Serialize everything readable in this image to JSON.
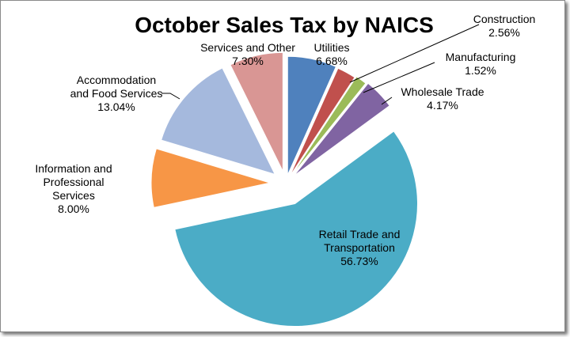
{
  "chart_data": {
    "type": "pie",
    "title": "October Sales Tax by NAICS",
    "slices": [
      {
        "name": "Utilities",
        "value": 6.68,
        "label": "6.68%",
        "color": "#4f81bd"
      },
      {
        "name": "Construction",
        "value": 2.56,
        "label": "2.56%",
        "color": "#c0504d"
      },
      {
        "name": "Manufacturing",
        "value": 1.52,
        "label": "1.52%",
        "color": "#9bbb59"
      },
      {
        "name": "Wholesale Trade",
        "value": 4.17,
        "label": "4.17%",
        "color": "#8064a2"
      },
      {
        "name": "Retail Trade and Transportation",
        "value": 56.73,
        "label": "56.73%",
        "color": "#4bacc6"
      },
      {
        "name": "Information and Professional Services",
        "value": 8.0,
        "label": "8.00%",
        "color": "#f79646"
      },
      {
        "name": "Accommodation and Food Services",
        "value": 13.04,
        "label": "13.04%",
        "color": "#a5b9dd"
      },
      {
        "name": "Services and Other",
        "value": 7.3,
        "label": "7.30%",
        "color": "#d99694"
      }
    ],
    "start_angle": "12 o'clock",
    "direction": "clockwise",
    "exploded": true,
    "legend": "none",
    "data_labels": "category name and percentage"
  }
}
